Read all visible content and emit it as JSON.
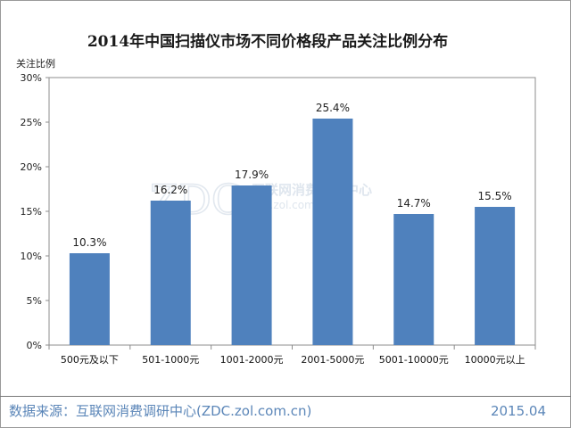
{
  "chart_data": {
    "type": "bar",
    "title": "2014年中国扫描仪市场不同价格段产品关注比例分布",
    "ylabel": "关注比例",
    "xlabel": "",
    "categories": [
      "500元及以下",
      "501-1000元",
      "1001-2000元",
      "2001-5000元",
      "5001-10000元",
      "10000元以上"
    ],
    "values": [
      10.3,
      16.2,
      17.9,
      25.4,
      14.7,
      15.5
    ],
    "value_labels": [
      "10.3%",
      "16.2%",
      "17.9%",
      "25.4%",
      "14.7%",
      "15.5%"
    ],
    "ylim": [
      0,
      30
    ],
    "yticks": [
      0,
      5,
      10,
      15,
      20,
      25,
      30
    ],
    "ytick_labels": [
      "0%",
      "5%",
      "10%",
      "15%",
      "20%",
      "25%",
      "30%"
    ],
    "bar_color": "#4f81bd",
    "grid": false,
    "legend": "none"
  },
  "watermark": {
    "logo_text": "ZDC",
    "line1": "互联网消费调研中心",
    "line2": "zdc.zol.com.cn"
  },
  "footer": {
    "source": "数据来源：互联网消费调研中心(ZDC.zol.com.cn)",
    "date": "2015.04",
    "text_color": "#5b86b8"
  }
}
